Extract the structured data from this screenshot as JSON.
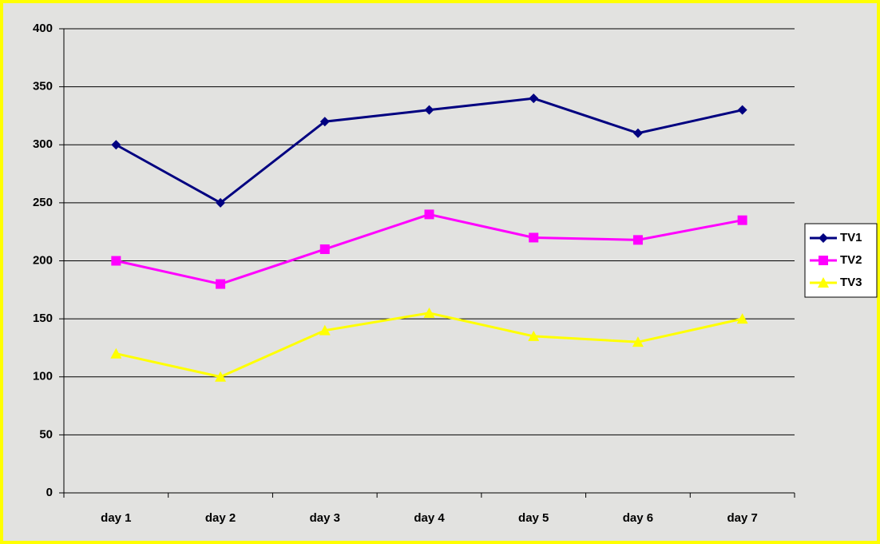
{
  "chart_data": {
    "type": "line",
    "categories": [
      "day 1",
      "day 2",
      "day 3",
      "day 4",
      "day 5",
      "day 6",
      "day 7"
    ],
    "series": [
      {
        "name": "TV1",
        "color": "#000080",
        "marker": "diamond",
        "values": [
          300,
          250,
          320,
          330,
          340,
          310,
          330
        ]
      },
      {
        "name": "TV2",
        "color": "#ff00ff",
        "marker": "square",
        "values": [
          200,
          180,
          210,
          240,
          220,
          218,
          235
        ]
      },
      {
        "name": "TV3",
        "color": "#ffff00",
        "marker": "triangle",
        "values": [
          120,
          100,
          140,
          155,
          135,
          130,
          150
        ]
      }
    ],
    "ylim": [
      0,
      400
    ],
    "yticks": [
      0,
      50,
      100,
      150,
      200,
      250,
      300,
      350,
      400
    ],
    "grid": true,
    "legend": "right"
  }
}
